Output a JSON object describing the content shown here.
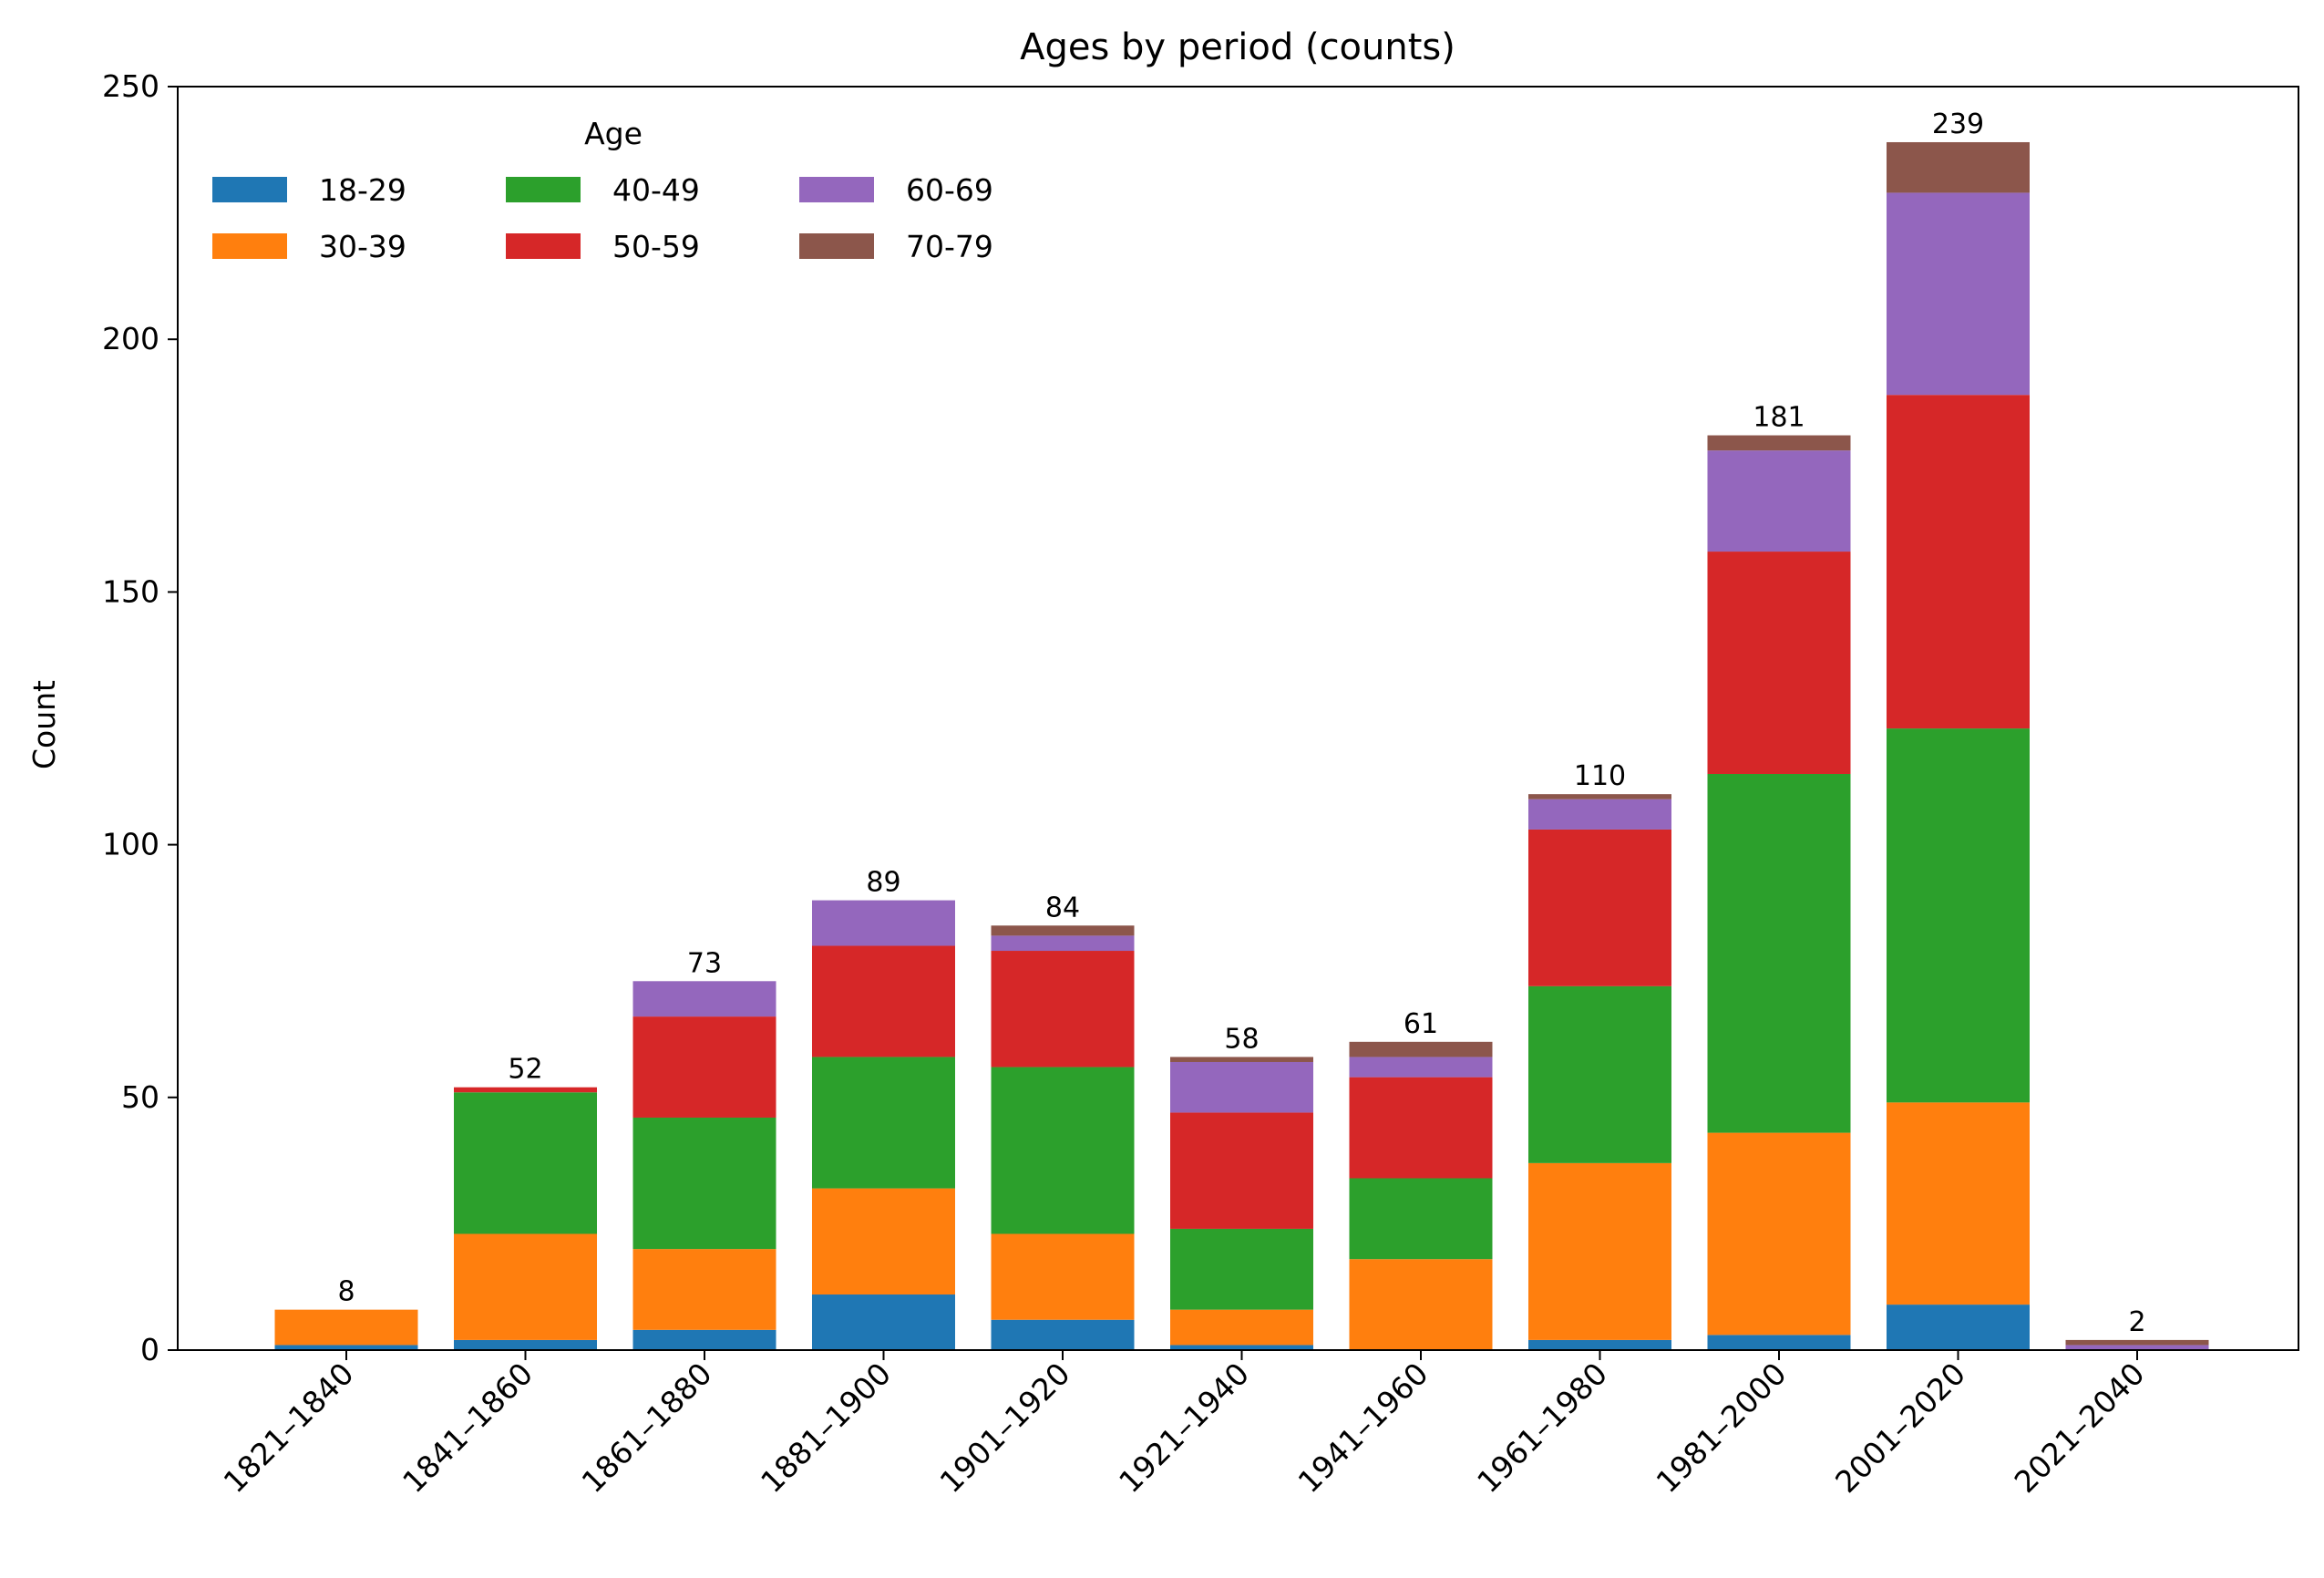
{
  "chart_data": {
    "type": "bar",
    "stacked": true,
    "title": "Ages by period (counts)",
    "xlabel": "",
    "ylabel": "Count",
    "ylim": [
      0,
      250
    ],
    "yticks": [
      0,
      50,
      100,
      150,
      200,
      250
    ],
    "categories": [
      "1821–1840",
      "1841–1860",
      "1861–1880",
      "1881–1900",
      "1901–1920",
      "1921–1940",
      "1941–1960",
      "1961–1980",
      "1981–2000",
      "2001–2020",
      "2021–2040"
    ],
    "series": [
      {
        "name": "18-29",
        "color": "#1f77b4",
        "values": [
          1,
          2,
          4,
          11,
          6,
          1,
          0,
          2,
          3,
          9,
          0
        ]
      },
      {
        "name": "30-39",
        "color": "#ff7f0e",
        "values": [
          7,
          21,
          16,
          21,
          17,
          7,
          18,
          35,
          40,
          40,
          0
        ]
      },
      {
        "name": "40-49",
        "color": "#2ca02c",
        "values": [
          0,
          28,
          26,
          26,
          33,
          16,
          16,
          35,
          71,
          74,
          0
        ]
      },
      {
        "name": "50-59",
        "color": "#d62728",
        "values": [
          0,
          1,
          20,
          22,
          23,
          23,
          20,
          31,
          44,
          66,
          0
        ]
      },
      {
        "name": "60-69",
        "color": "#9467bd",
        "values": [
          0,
          0,
          7,
          9,
          3,
          10,
          4,
          6,
          20,
          40,
          1
        ]
      },
      {
        "name": "70-79",
        "color": "#8c564b",
        "values": [
          0,
          0,
          0,
          0,
          2,
          1,
          3,
          1,
          3,
          10,
          1
        ]
      }
    ],
    "totals": [
      "8",
      "52",
      "73",
      "89",
      "84",
      "58",
      "61",
      "110",
      "181",
      "239",
      "2"
    ],
    "legend": {
      "title": "Age",
      "placement": "top-left",
      "columns": 3
    },
    "grid": false
  }
}
